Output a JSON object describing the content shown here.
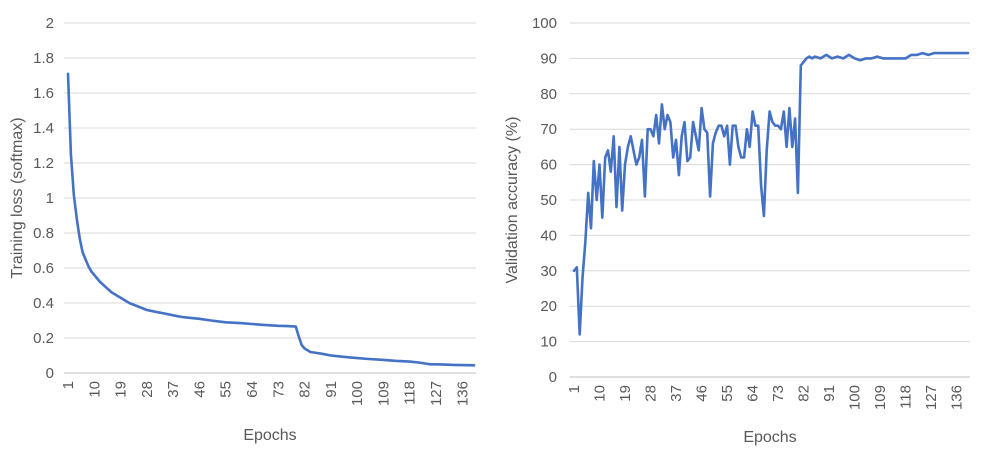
{
  "chart_data": [
    {
      "type": "line",
      "xlabel": "Epochs",
      "ylabel": "Training loss (softmax)",
      "ylim": [
        0,
        2
      ],
      "yticks": [
        "0",
        "0.2",
        "0.4",
        "0.6",
        "0.8",
        "1",
        "1.2",
        "1.4",
        "1.6",
        "1.8",
        "2"
      ],
      "xticks": [
        "1",
        "10",
        "19",
        "28",
        "37",
        "46",
        "55",
        "64",
        "73",
        "82",
        "91",
        "100",
        "109",
        "118",
        "127",
        "136"
      ],
      "xlim": [
        1,
        140
      ],
      "grid": true,
      "line_color": "#4472c4",
      "series": [
        {
          "x": [
            1,
            2,
            3,
            4,
            5,
            6,
            7,
            8,
            9,
            10,
            12,
            14,
            16,
            18,
            20,
            22,
            25,
            28,
            31,
            34,
            37,
            40,
            43,
            46,
            50,
            55,
            60,
            64,
            68,
            73,
            76,
            79,
            80,
            81,
            82,
            84,
            86,
            88,
            91,
            94,
            97,
            100,
            104,
            109,
            113,
            118,
            121,
            123,
            125,
            127,
            130,
            133,
            136,
            140
          ],
          "y": [
            1.71,
            1.25,
            1.02,
            0.88,
            0.77,
            0.69,
            0.65,
            0.61,
            0.58,
            0.56,
            0.52,
            0.49,
            0.46,
            0.44,
            0.42,
            0.4,
            0.38,
            0.36,
            0.35,
            0.34,
            0.33,
            0.32,
            0.315,
            0.31,
            0.3,
            0.29,
            0.285,
            0.28,
            0.275,
            0.27,
            0.268,
            0.265,
            0.21,
            0.16,
            0.14,
            0.12,
            0.115,
            0.11,
            0.1,
            0.095,
            0.09,
            0.085,
            0.08,
            0.075,
            0.07,
            0.065,
            0.06,
            0.055,
            0.05,
            0.05,
            0.048,
            0.046,
            0.045,
            0.044
          ]
        }
      ]
    },
    {
      "type": "line",
      "xlabel": "Epochs",
      "ylabel": "Validation accuracy (%)",
      "ylim": [
        0,
        100
      ],
      "yticks": [
        "0",
        "10",
        "20",
        "30",
        "40",
        "50",
        "60",
        "70",
        "80",
        "90",
        "100"
      ],
      "xticks": [
        "1",
        "10",
        "19",
        "28",
        "37",
        "46",
        "55",
        "64",
        "73",
        "82",
        "91",
        "100",
        "109",
        "118",
        "127",
        "136"
      ],
      "xlim": [
        1,
        140
      ],
      "grid": true,
      "line_color": "#4472c4",
      "series": [
        {
          "x": [
            1,
            2,
            3,
            4,
            5,
            6,
            7,
            8,
            9,
            10,
            11,
            12,
            13,
            14,
            15,
            16,
            17,
            18,
            19,
            20,
            21,
            22,
            23,
            24,
            25,
            26,
            27,
            28,
            29,
            30,
            31,
            32,
            33,
            34,
            35,
            36,
            37,
            38,
            39,
            40,
            41,
            42,
            43,
            44,
            45,
            46,
            47,
            48,
            49,
            50,
            51,
            52,
            53,
            54,
            55,
            56,
            57,
            58,
            59,
            60,
            61,
            62,
            63,
            64,
            65,
            66,
            67,
            68,
            69,
            70,
            71,
            72,
            73,
            74,
            75,
            76,
            77,
            78,
            79,
            80,
            81,
            82,
            83,
            84,
            85,
            86,
            88,
            90,
            92,
            94,
            96,
            98,
            100,
            102,
            104,
            106,
            108,
            110,
            112,
            114,
            116,
            118,
            120,
            122,
            124,
            126,
            128,
            130,
            132,
            134,
            136,
            138,
            140
          ],
          "y": [
            30,
            31,
            12,
            28,
            38,
            52,
            42,
            61,
            50,
            60,
            45,
            62,
            64,
            58,
            68,
            48,
            65,
            47,
            60,
            65,
            68,
            64,
            60,
            62,
            67,
            51,
            70,
            70,
            68,
            74,
            66,
            77,
            70,
            74,
            72,
            62,
            67,
            57,
            68,
            72,
            61,
            62,
            72,
            68,
            64,
            76,
            70,
            69,
            51,
            66,
            69,
            71,
            71,
            68,
            71,
            60,
            71,
            71,
            65,
            62,
            62,
            70,
            65,
            75,
            71,
            71,
            54,
            45.5,
            64,
            75,
            72,
            71,
            71,
            70,
            75,
            65,
            76,
            65,
            73,
            52,
            88,
            89,
            90,
            90.5,
            90,
            90.5,
            90,
            91,
            90,
            90.5,
            90,
            91,
            90,
            89.5,
            90,
            90,
            90.5,
            90,
            90,
            90,
            90,
            90,
            91,
            91,
            91.5,
            91,
            91.5,
            91.5,
            91.5,
            91.5,
            91.5,
            91.5,
            91.5
          ]
        }
      ]
    }
  ]
}
